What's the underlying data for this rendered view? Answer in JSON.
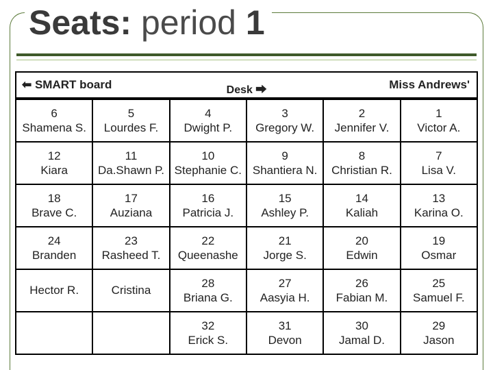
{
  "title_prefix": "Seats:",
  "title_mid": " period ",
  "title_num": "1",
  "header": {
    "left_arrow": "⬅",
    "left_text": " SMART board",
    "center_text": "Desk ",
    "center_arrow": "⮕",
    "right_text": "Miss Andrews'"
  },
  "rows": [
    [
      {
        "num": "6",
        "name": "Shamena S."
      },
      {
        "num": "5",
        "name": "Lourdes F."
      },
      {
        "num": "4",
        "name": "Dwight P."
      },
      {
        "num": "3",
        "name": "Gregory W."
      },
      {
        "num": "2",
        "name": "Jennifer V."
      },
      {
        "num": "1",
        "name": "Victor A."
      }
    ],
    [
      {
        "num": "12",
        "name": "Kiara"
      },
      {
        "num": "11",
        "name": "Da.Shawn P."
      },
      {
        "num": "10",
        "name": "Stephanie C."
      },
      {
        "num": "9",
        "name": "Shantiera N."
      },
      {
        "num": "8",
        "name": "Christian R."
      },
      {
        "num": "7",
        "name": "Lisa V."
      }
    ],
    [
      {
        "num": "18",
        "name": "Brave C."
      },
      {
        "num": "17",
        "name": "Auziana"
      },
      {
        "num": "16",
        "name": "Patricia J."
      },
      {
        "num": "15",
        "name": "Ashley P."
      },
      {
        "num": "14",
        "name": "Kaliah"
      },
      {
        "num": "13",
        "name": "Karina O."
      }
    ],
    [
      {
        "num": "24",
        "name": "Branden"
      },
      {
        "num": "23",
        "name": "Rasheed T."
      },
      {
        "num": "22",
        "name": "Queenashe"
      },
      {
        "num": "21",
        "name": "Jorge S."
      },
      {
        "num": "20",
        "name": "Edwin"
      },
      {
        "num": "19",
        "name": "Osmar"
      }
    ],
    [
      {
        "num": "",
        "name": "Hector R."
      },
      {
        "num": "",
        "name": "Cristina"
      },
      {
        "num": "28",
        "name": "Briana G."
      },
      {
        "num": "27",
        "name": "Aasyia H."
      },
      {
        "num": "26",
        "name": "Fabian M."
      },
      {
        "num": "25",
        "name": "Samuel F."
      }
    ],
    [
      {
        "num": "",
        "name": ""
      },
      {
        "num": "",
        "name": ""
      },
      {
        "num": "32",
        "name": "Erick S."
      },
      {
        "num": "31",
        "name": "Devon"
      },
      {
        "num": "30",
        "name": "Jamal D."
      },
      {
        "num": "29",
        "name": "Jason"
      }
    ]
  ]
}
